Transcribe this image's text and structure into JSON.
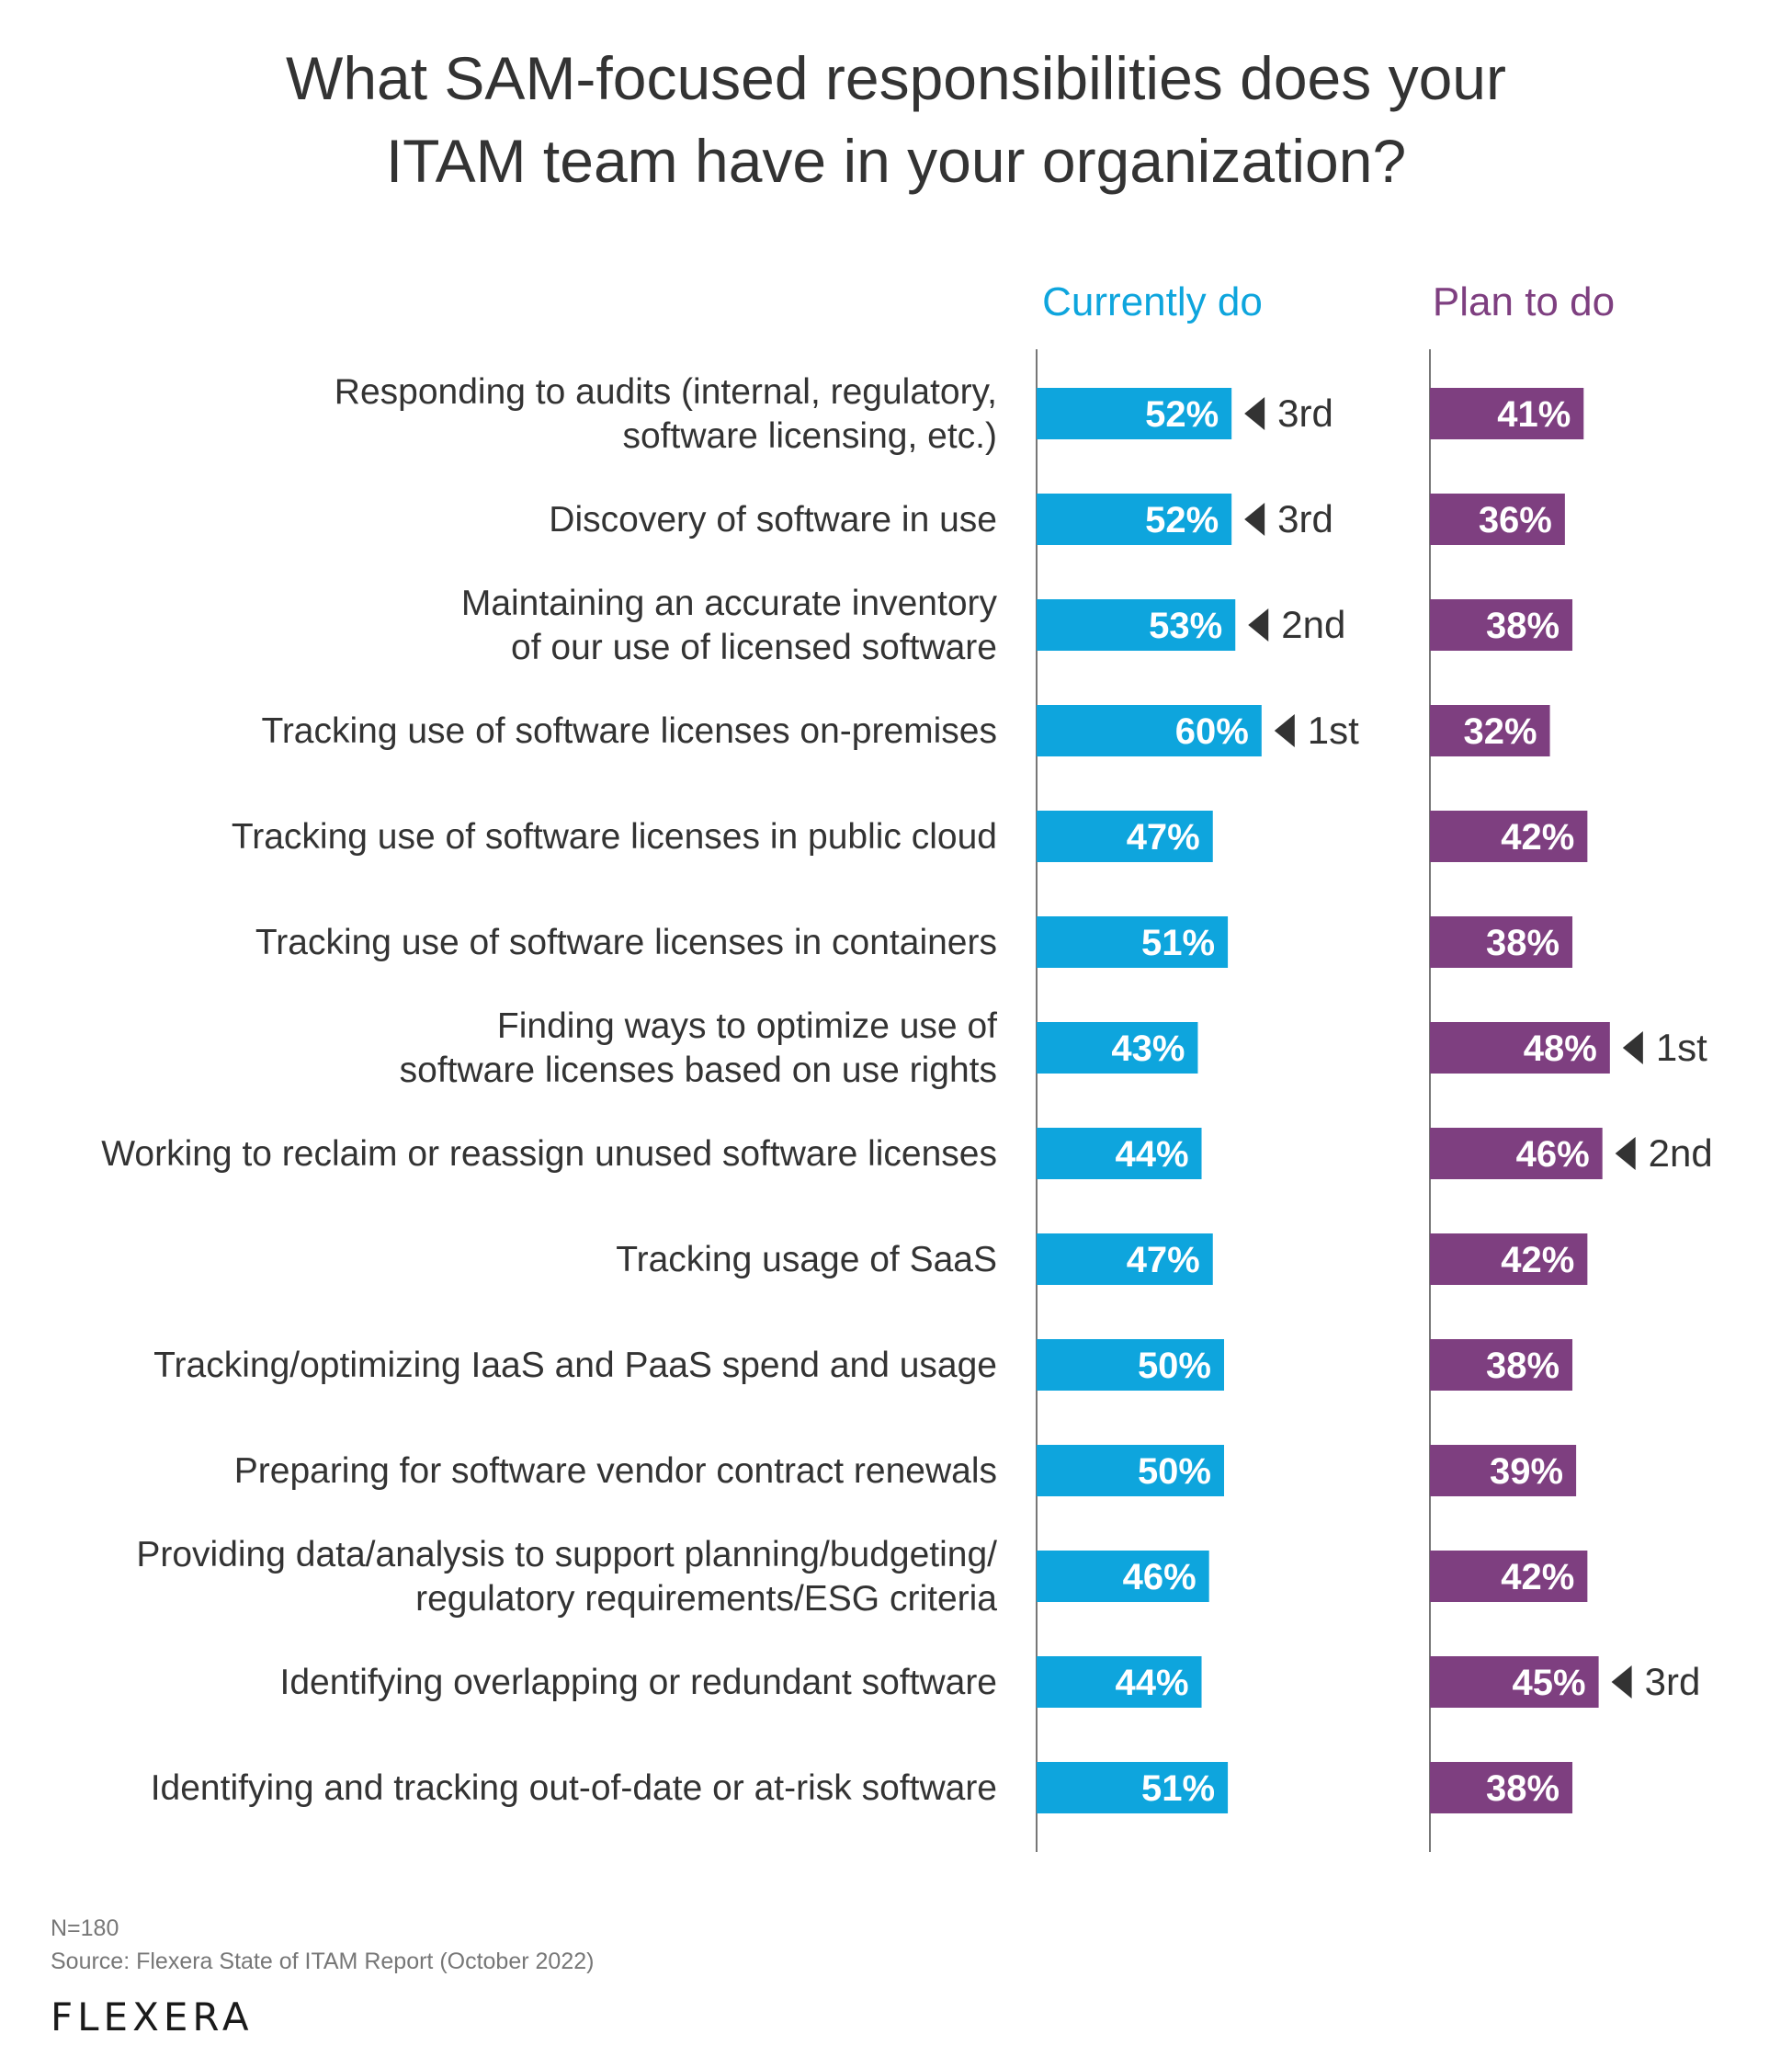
{
  "title": "What SAM-focused responsibilities does your\nITAM team have in your organization?",
  "footer": {
    "note": "N=180",
    "source": "Source: Flexera State of ITAM Report (October 2022)"
  },
  "logo": "FLEXERA",
  "colors": {
    "current": "#0ea5dd",
    "plan": "#7e3f80",
    "axis": "#777777",
    "rank_marker": "#333333"
  },
  "chart_data": {
    "type": "bar",
    "orientation": "horizontal",
    "title": "What SAM-focused responsibilities does your ITAM team have in your organization?",
    "unit": "%",
    "categories": [
      [
        "Responding to audits (internal, regulatory,",
        "software licensing, etc.)"
      ],
      [
        "Discovery of software in use"
      ],
      [
        "Maintaining an accurate inventory",
        "of our use of licensed software"
      ],
      [
        "Tracking use of software licenses on-premises"
      ],
      [
        "Tracking use of software licenses in public cloud"
      ],
      [
        "Tracking use of software licenses in containers"
      ],
      [
        "Finding ways to optimize use of",
        "software licenses based on use rights"
      ],
      [
        "Working to reclaim or reassign unused software licenses"
      ],
      [
        "Tracking usage of SaaS"
      ],
      [
        "Tracking/optimizing IaaS and PaaS spend and usage"
      ],
      [
        "Preparing for software vendor contract renewals"
      ],
      [
        "Providing data/analysis to support planning/budgeting/",
        "regulatory requirements/ESG criteria"
      ],
      [
        "Identifying overlapping or redundant software"
      ],
      [
        "Identifying and tracking out-of-date or at-risk software"
      ]
    ],
    "series": [
      {
        "name": "Currently do",
        "values": [
          52,
          52,
          53,
          60,
          47,
          51,
          43,
          44,
          47,
          50,
          50,
          46,
          44,
          51
        ],
        "labels": [
          "52%",
          "52%",
          "53%",
          "60%",
          "47%",
          "51%",
          "43%",
          "44%",
          "47%",
          "50%",
          "50%",
          "46%",
          "44%",
          "51%"
        ],
        "ranks": [
          "3rd",
          "3rd",
          "2nd",
          "1st",
          null,
          null,
          null,
          null,
          null,
          null,
          null,
          null,
          null,
          null
        ]
      },
      {
        "name": "Plan to do",
        "values": [
          41,
          36,
          38,
          32,
          42,
          38,
          48,
          46,
          42,
          38,
          39,
          42,
          45,
          38
        ],
        "labels": [
          "41%",
          "36%",
          "38%",
          "32%",
          "42%",
          "38%",
          "48%",
          "46%",
          "42%",
          "38%",
          "39%",
          "42%",
          "45%",
          "38%"
        ],
        "ranks": [
          null,
          null,
          null,
          null,
          null,
          null,
          "1st",
          "2nd",
          null,
          null,
          null,
          null,
          "3rd",
          null
        ]
      }
    ],
    "xlim": [
      0,
      100
    ]
  }
}
